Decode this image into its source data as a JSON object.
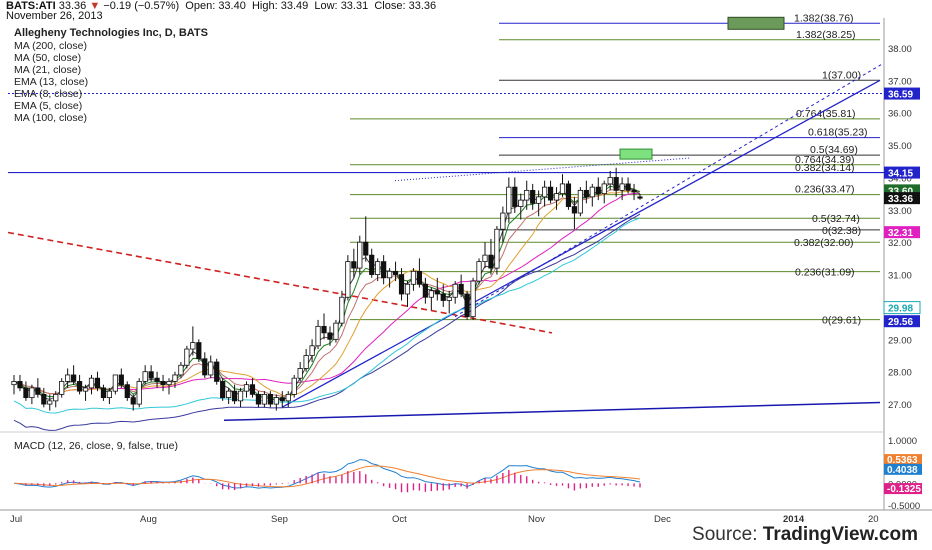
{
  "header": {
    "symbol": "BATS:ATI",
    "price": "33.36",
    "change": "−0.19 (−0.57%)",
    "open_label": "Open:",
    "open": "33.40",
    "high_label": "High:",
    "high": "33.49",
    "low_label": "Low:",
    "low": "33.31",
    "close_label": "Close:",
    "close": "33.36",
    "date": "November 26, 2013",
    "down_color": "#c0392b"
  },
  "legend": {
    "title": "Allegheny Technologies Inc, D, BATS",
    "items": [
      "MA (200, close)",
      "MA (50, close)",
      "MA (21, close)",
      "EMA (13, close)",
      "EMA (8, close)",
      "EMA (5, close)",
      "MA (100, close)"
    ]
  },
  "macd_label": "MACD (12, 26, close, 9, false, true)",
  "source": {
    "prefix": "Source:",
    "brand": "TradingView.com"
  },
  "chart_data": {
    "type": "candlestick",
    "y_axis": {
      "ylim": [
        26.2,
        38.8
      ],
      "ticks": [
        "38.00",
        "37.00",
        "36.00",
        "35.00",
        "34.00",
        "33.00",
        "32.00",
        "31.00",
        "30.00",
        "29.00",
        "28.00",
        "27.00"
      ]
    },
    "x_axis": {
      "ticks": [
        "Jul",
        "Aug",
        "Sep",
        "Oct",
        "Nov",
        "Dec",
        "2014",
        "20"
      ]
    },
    "price_tags": [
      {
        "value": "36.59",
        "bg": "#2323cc",
        "fg": "#ffffff"
      },
      {
        "value": "34.15",
        "bg": "#2323cc",
        "fg": "#ffffff"
      },
      {
        "value": "33.60",
        "bg": "#1f6b2a",
        "fg": "#ffffff"
      },
      {
        "value": "33.36",
        "bg": "#111111",
        "fg": "#ffffff"
      },
      {
        "value": "32.31",
        "bg": "#e020c0",
        "fg": "#ffffff"
      },
      {
        "value": "29.98",
        "bg": "#ffffff",
        "fg": "#1aa8b0"
      },
      {
        "value": "29.56",
        "bg": "#2323cc",
        "fg": "#ffffff"
      }
    ],
    "fib_labels_upper": [
      {
        "text": "1.382(38.76)",
        "value": 38.76
      },
      {
        "text": "1.382(38.25)",
        "value": 38.25
      },
      {
        "text": "1(37.00)",
        "value": 37.0
      },
      {
        "text": "0.764(35.81)",
        "value": 35.81
      },
      {
        "text": "0.618(35.23)",
        "value": 35.23
      },
      {
        "text": "0.5(34.69)",
        "value": 34.69
      },
      {
        "text": "0.764(34.39)",
        "value": 34.39
      },
      {
        "text": "0.382(34.14)",
        "value": 34.14
      },
      {
        "text": "0.236(33.47)",
        "value": 33.47
      }
    ],
    "fib_labels_lower": [
      {
        "text": "0.5(32.74)",
        "value": 32.74
      },
      {
        "text": "0(32.38)",
        "value": 32.38
      },
      {
        "text": "0.382(32.00)",
        "value": 32.0
      },
      {
        "text": "0.236(31.09)",
        "value": 31.09
      },
      {
        "text": "0(29.61)",
        "value": 29.61
      }
    ],
    "candles": [
      [
        27.6,
        27.9,
        27.3,
        27.7
      ],
      [
        27.7,
        27.9,
        27.4,
        27.5
      ],
      [
        27.5,
        27.7,
        27.1,
        27.2
      ],
      [
        27.2,
        27.6,
        27.0,
        27.5
      ],
      [
        27.5,
        27.8,
        27.2,
        27.3
      ],
      [
        27.3,
        27.5,
        26.9,
        27.0
      ],
      [
        27.0,
        27.3,
        26.8,
        27.1
      ],
      [
        27.1,
        27.4,
        26.9,
        27.3
      ],
      [
        27.3,
        27.8,
        27.2,
        27.7
      ],
      [
        27.7,
        28.1,
        27.5,
        27.9
      ],
      [
        27.9,
        28.2,
        27.6,
        27.7
      ],
      [
        27.7,
        27.9,
        27.3,
        27.4
      ],
      [
        27.4,
        27.6,
        27.1,
        27.5
      ],
      [
        27.5,
        27.9,
        27.3,
        27.8
      ],
      [
        27.8,
        28.0,
        27.4,
        27.5
      ],
      [
        27.5,
        27.6,
        27.1,
        27.2
      ],
      [
        27.2,
        27.5,
        27.0,
        27.4
      ],
      [
        27.4,
        27.9,
        27.3,
        27.9
      ],
      [
        27.9,
        28.1,
        27.5,
        27.6
      ],
      [
        27.6,
        27.7,
        27.1,
        27.2
      ],
      [
        27.2,
        27.3,
        26.8,
        27.0
      ],
      [
        27.0,
        27.8,
        26.9,
        27.7
      ],
      [
        27.7,
        28.2,
        27.6,
        28.0
      ],
      [
        28.0,
        28.2,
        27.7,
        27.8
      ],
      [
        27.8,
        28.0,
        27.5,
        27.7
      ],
      [
        27.7,
        27.9,
        27.4,
        27.6
      ],
      [
        27.6,
        27.8,
        27.3,
        27.7
      ],
      [
        27.7,
        28.0,
        27.5,
        27.9
      ],
      [
        27.9,
        28.3,
        27.8,
        28.2
      ],
      [
        28.2,
        28.8,
        28.1,
        28.7
      ],
      [
        28.7,
        29.4,
        28.5,
        28.9
      ],
      [
        28.9,
        29.0,
        28.3,
        28.4
      ],
      [
        28.4,
        28.6,
        27.8,
        27.9
      ],
      [
        27.9,
        28.5,
        27.8,
        28.3
      ],
      [
        28.3,
        28.4,
        27.6,
        27.7
      ],
      [
        27.7,
        27.8,
        27.1,
        27.2
      ],
      [
        27.2,
        27.5,
        27.0,
        27.4
      ],
      [
        27.4,
        27.6,
        27.0,
        27.1
      ],
      [
        27.1,
        27.5,
        26.9,
        27.4
      ],
      [
        27.4,
        27.7,
        27.2,
        27.6
      ],
      [
        27.6,
        27.8,
        27.2,
        27.3
      ],
      [
        27.3,
        27.4,
        26.9,
        27.0
      ],
      [
        27.0,
        27.4,
        26.9,
        27.3
      ],
      [
        27.3,
        27.4,
        26.9,
        27.0
      ],
      [
        27.0,
        27.3,
        26.8,
        27.2
      ],
      [
        27.2,
        27.4,
        26.9,
        27.1
      ],
      [
        27.1,
        27.4,
        26.9,
        27.3
      ],
      [
        27.3,
        27.9,
        27.2,
        27.8
      ],
      [
        27.8,
        28.3,
        27.7,
        28.1
      ],
      [
        28.1,
        28.7,
        28.0,
        28.5
      ],
      [
        28.5,
        29.0,
        28.3,
        28.8
      ],
      [
        28.8,
        29.6,
        28.7,
        29.4
      ],
      [
        29.4,
        29.8,
        29.0,
        29.2
      ],
      [
        29.2,
        29.4,
        28.8,
        29.0
      ],
      [
        29.0,
        29.6,
        28.9,
        29.5
      ],
      [
        29.5,
        30.5,
        29.4,
        30.3
      ],
      [
        30.3,
        31.6,
        30.2,
        31.4
      ],
      [
        31.4,
        31.8,
        30.9,
        31.2
      ],
      [
        31.2,
        32.2,
        31.0,
        32.0
      ],
      [
        32.0,
        32.8,
        31.4,
        31.6
      ],
      [
        31.6,
        31.8,
        30.9,
        31.0
      ],
      [
        31.0,
        31.5,
        30.8,
        31.4
      ],
      [
        31.4,
        31.6,
        30.7,
        30.9
      ],
      [
        30.9,
        31.2,
        30.6,
        31.1
      ],
      [
        31.1,
        31.4,
        30.8,
        31.0
      ],
      [
        31.0,
        31.2,
        30.2,
        30.4
      ],
      [
        30.4,
        30.8,
        30.0,
        30.7
      ],
      [
        30.7,
        31.2,
        30.5,
        31.1
      ],
      [
        31.1,
        31.5,
        30.6,
        30.7
      ],
      [
        30.7,
        30.9,
        30.1,
        30.3
      ],
      [
        30.3,
        30.6,
        29.9,
        30.5
      ],
      [
        30.5,
        30.9,
        30.2,
        30.4
      ],
      [
        30.4,
        30.7,
        30.0,
        30.2
      ],
      [
        30.2,
        30.5,
        29.8,
        30.3
      ],
      [
        30.3,
        30.8,
        30.1,
        30.7
      ],
      [
        30.7,
        31.0,
        30.3,
        30.4
      ],
      [
        30.4,
        30.5,
        29.6,
        29.7
      ],
      [
        29.7,
        30.9,
        29.6,
        30.8
      ],
      [
        30.8,
        31.5,
        30.7,
        31.4
      ],
      [
        31.4,
        32.0,
        31.2,
        31.6
      ],
      [
        31.6,
        32.1,
        31.0,
        31.2
      ],
      [
        31.2,
        32.5,
        31.0,
        32.4
      ],
      [
        32.4,
        33.1,
        32.0,
        32.9
      ],
      [
        32.9,
        34.0,
        32.6,
        33.7
      ],
      [
        33.7,
        34.0,
        32.9,
        33.1
      ],
      [
        33.1,
        33.5,
        32.7,
        33.3
      ],
      [
        33.3,
        33.9,
        33.0,
        33.6
      ],
      [
        33.6,
        33.8,
        33.0,
        33.2
      ],
      [
        33.2,
        33.6,
        32.8,
        33.4
      ],
      [
        33.4,
        33.9,
        33.1,
        33.7
      ],
      [
        33.7,
        33.9,
        33.2,
        33.3
      ],
      [
        33.3,
        33.7,
        33.0,
        33.5
      ],
      [
        33.5,
        34.1,
        33.4,
        33.8
      ],
      [
        33.8,
        33.9,
        33.0,
        33.1
      ],
      [
        33.1,
        33.4,
        32.4,
        32.9
      ],
      [
        32.9,
        33.7,
        32.8,
        33.6
      ],
      [
        33.6,
        33.9,
        33.2,
        33.4
      ],
      [
        33.4,
        33.8,
        33.1,
        33.7
      ],
      [
        33.7,
        34.0,
        33.3,
        33.5
      ],
      [
        33.5,
        33.9,
        33.2,
        33.8
      ],
      [
        33.8,
        34.2,
        33.6,
        34.0
      ],
      [
        34.0,
        34.3,
        33.4,
        33.6
      ],
      [
        33.6,
        34.0,
        33.3,
        33.8
      ],
      [
        33.8,
        34.0,
        33.5,
        33.6
      ],
      [
        33.6,
        33.8,
        33.3,
        33.55
      ],
      [
        33.4,
        33.49,
        33.31,
        33.36
      ]
    ]
  }
}
